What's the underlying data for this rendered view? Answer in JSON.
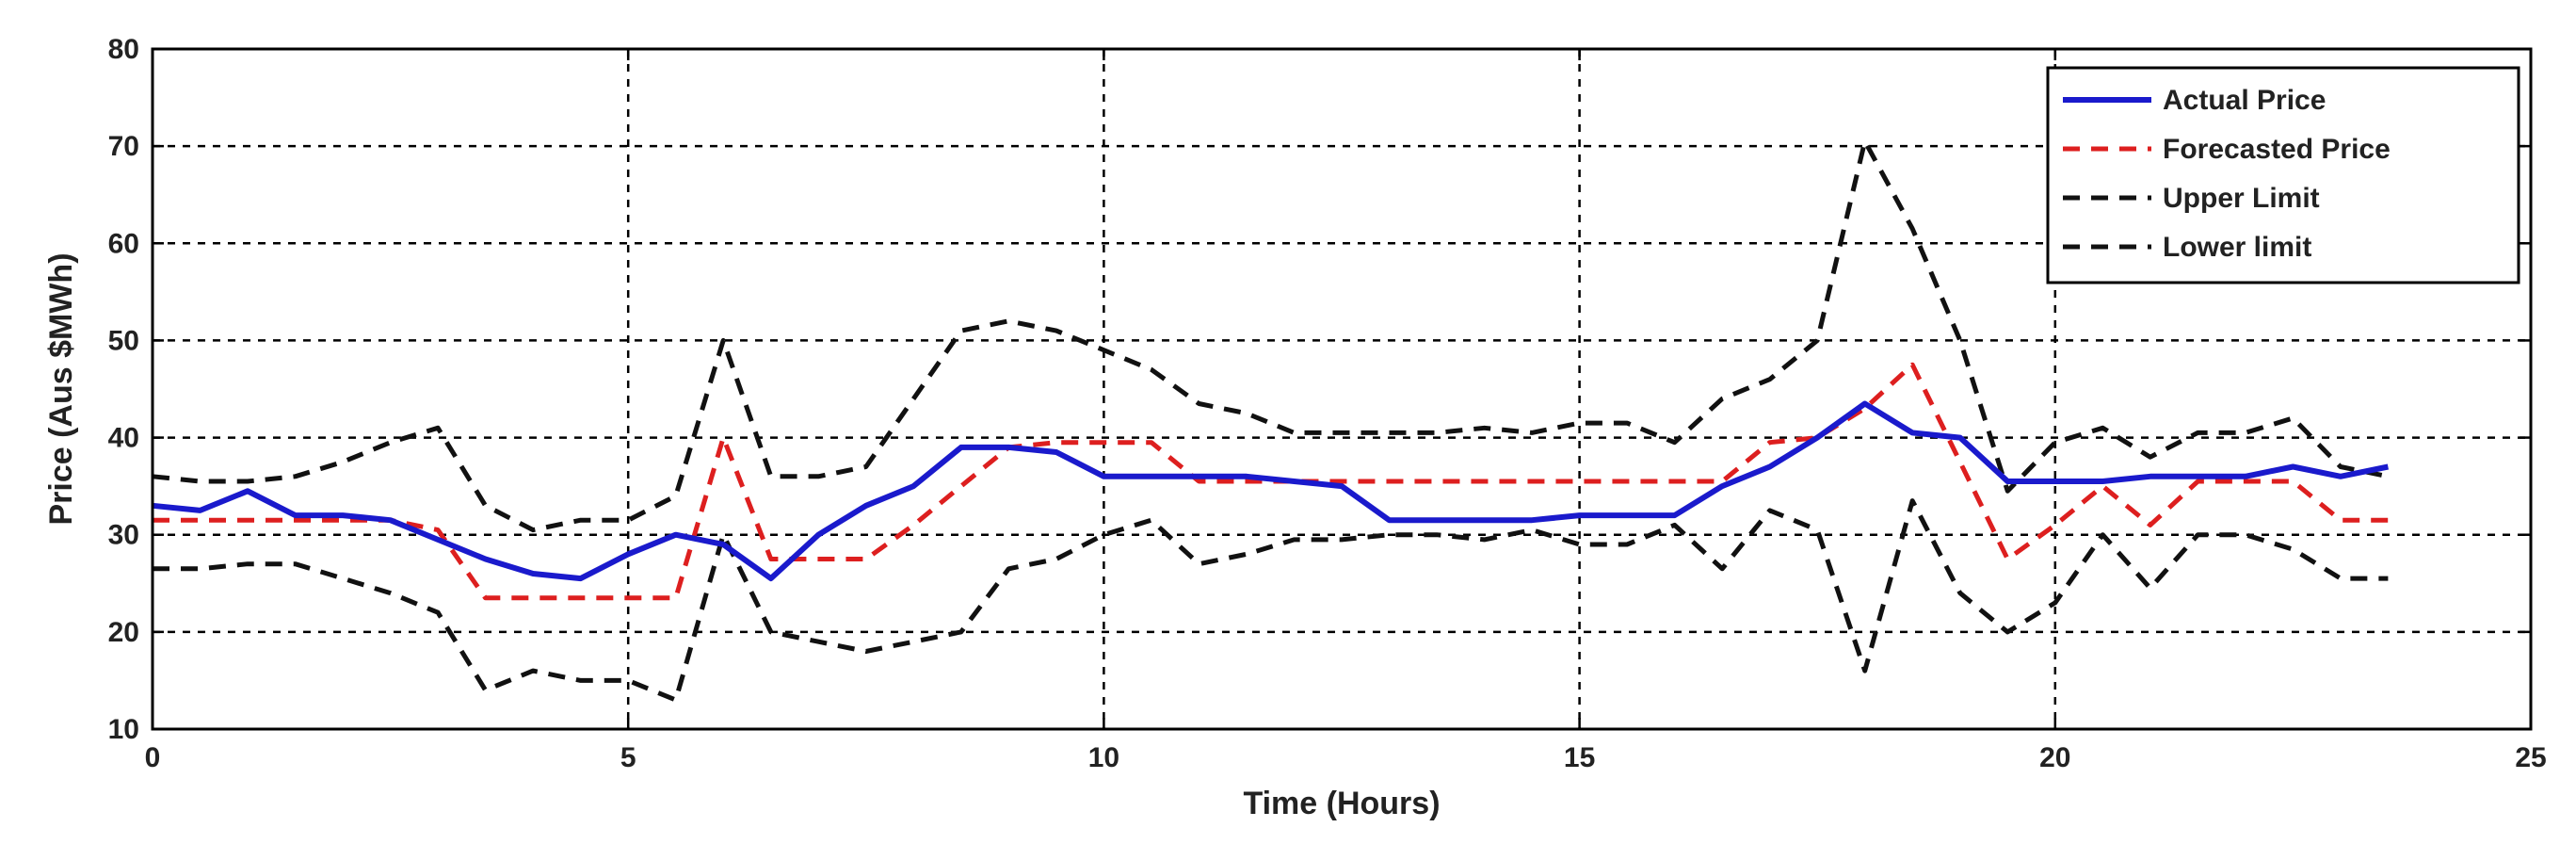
{
  "chart_data": {
    "type": "line",
    "title": "",
    "xlabel": "Time (Hours)",
    "ylabel": "Price (Aus $MWh)",
    "xlim": [
      0,
      25
    ],
    "ylim": [
      10,
      80
    ],
    "xticks": [
      0,
      5,
      10,
      15,
      20,
      25
    ],
    "yticks": [
      10,
      20,
      30,
      40,
      50,
      60,
      70,
      80
    ],
    "grid": true,
    "legend_position": "top-right",
    "series": [
      {
        "name": "Actual Price",
        "color": "#1a1acc",
        "style": "solid",
        "points": [
          [
            0,
            33
          ],
          [
            0.5,
            32.5
          ],
          [
            1,
            34.5
          ],
          [
            1.5,
            32
          ],
          [
            2,
            32
          ],
          [
            2.5,
            31.5
          ],
          [
            3,
            29.5
          ],
          [
            3.5,
            27.5
          ],
          [
            4,
            26
          ],
          [
            4.5,
            25.5
          ],
          [
            5,
            28
          ],
          [
            5.5,
            30
          ],
          [
            6,
            29
          ],
          [
            6.5,
            25.5
          ],
          [
            7,
            30
          ],
          [
            7.5,
            33
          ],
          [
            8,
            35
          ],
          [
            8.5,
            39
          ],
          [
            9,
            39
          ],
          [
            9.5,
            38.5
          ],
          [
            10,
            36
          ],
          [
            10.5,
            36
          ],
          [
            11,
            36
          ],
          [
            11.5,
            36
          ],
          [
            12,
            35.5
          ],
          [
            12.5,
            35
          ],
          [
            13,
            31.5
          ],
          [
            13.5,
            31.5
          ],
          [
            14,
            31.5
          ],
          [
            14.5,
            31.5
          ],
          [
            15,
            32
          ],
          [
            15.5,
            32
          ],
          [
            16,
            32
          ],
          [
            16.5,
            35
          ],
          [
            17,
            37
          ],
          [
            17.5,
            40
          ],
          [
            18,
            43.5
          ],
          [
            18.5,
            40.5
          ],
          [
            19,
            40
          ],
          [
            19.5,
            35.5
          ],
          [
            20,
            35.5
          ],
          [
            20.5,
            35.5
          ],
          [
            21,
            36
          ],
          [
            21.5,
            36
          ],
          [
            22,
            36
          ],
          [
            22.5,
            37
          ],
          [
            23,
            36
          ],
          [
            23.5,
            37
          ]
        ]
      },
      {
        "name": "Forecasted Price",
        "color": "#dd1f1f",
        "style": "dashed",
        "points": [
          [
            0,
            31.5
          ],
          [
            0.5,
            31.5
          ],
          [
            1,
            31.5
          ],
          [
            1.5,
            31.5
          ],
          [
            2,
            31.5
          ],
          [
            2.5,
            31.5
          ],
          [
            3,
            30.5
          ],
          [
            3.5,
            23.5
          ],
          [
            4,
            23.5
          ],
          [
            4.5,
            23.5
          ],
          [
            5,
            23.5
          ],
          [
            5.5,
            23.5
          ],
          [
            6,
            40
          ],
          [
            6.5,
            27.5
          ],
          [
            7,
            27.5
          ],
          [
            7.5,
            27.5
          ],
          [
            8,
            31
          ],
          [
            8.5,
            35
          ],
          [
            9,
            39
          ],
          [
            9.5,
            39.5
          ],
          [
            10,
            39.5
          ],
          [
            10.5,
            39.5
          ],
          [
            11,
            35.5
          ],
          [
            11.5,
            35.5
          ],
          [
            12,
            35.5
          ],
          [
            12.5,
            35.5
          ],
          [
            13,
            35.5
          ],
          [
            13.5,
            35.5
          ],
          [
            14,
            35.5
          ],
          [
            14.5,
            35.5
          ],
          [
            15,
            35.5
          ],
          [
            15.5,
            35.5
          ],
          [
            16,
            35.5
          ],
          [
            16.5,
            35.5
          ],
          [
            17,
            39.5
          ],
          [
            17.5,
            40
          ],
          [
            18,
            43
          ],
          [
            18.5,
            47.5
          ],
          [
            19,
            37.5
          ],
          [
            19.5,
            27.5
          ],
          [
            20,
            31
          ],
          [
            20.5,
            35
          ],
          [
            21,
            31
          ],
          [
            21.5,
            35.5
          ],
          [
            22,
            35.5
          ],
          [
            22.5,
            35.5
          ],
          [
            23,
            31.5
          ],
          [
            23.5,
            31.5
          ]
        ]
      },
      {
        "name": "Upper Limit",
        "color": "#111111",
        "style": "dashed",
        "points": [
          [
            0,
            36
          ],
          [
            0.5,
            35.5
          ],
          [
            1,
            35.5
          ],
          [
            1.5,
            36
          ],
          [
            2,
            37.5
          ],
          [
            2.5,
            39.5
          ],
          [
            3,
            41
          ],
          [
            3.5,
            33
          ],
          [
            4,
            30.5
          ],
          [
            4.5,
            31.5
          ],
          [
            5,
            31.5
          ],
          [
            5.5,
            34
          ],
          [
            6,
            50
          ],
          [
            6.5,
            36
          ],
          [
            7,
            36
          ],
          [
            7.5,
            37
          ],
          [
            8,
            44
          ],
          [
            8.5,
            51
          ],
          [
            9,
            52
          ],
          [
            9.5,
            51
          ],
          [
            10,
            49
          ],
          [
            10.5,
            47
          ],
          [
            11,
            43.5
          ],
          [
            11.5,
            42.5
          ],
          [
            12,
            40.5
          ],
          [
            12.5,
            40.5
          ],
          [
            13,
            40.5
          ],
          [
            13.5,
            40.5
          ],
          [
            14,
            41
          ],
          [
            14.5,
            40.5
          ],
          [
            15,
            41.5
          ],
          [
            15.5,
            41.5
          ],
          [
            16,
            39.5
          ],
          [
            16.5,
            44
          ],
          [
            17,
            46
          ],
          [
            17.5,
            50
          ],
          [
            18,
            70.5
          ],
          [
            18.5,
            61.5
          ],
          [
            19,
            50
          ],
          [
            19.5,
            34.5
          ],
          [
            20,
            39.5
          ],
          [
            20.5,
            41
          ],
          [
            21,
            38
          ],
          [
            21.5,
            40.5
          ],
          [
            22,
            40.5
          ],
          [
            22.5,
            42
          ],
          [
            23,
            37
          ],
          [
            23.5,
            36
          ]
        ]
      },
      {
        "name": "Lower limit",
        "color": "#111111",
        "style": "dashed",
        "points": [
          [
            0,
            26.5
          ],
          [
            0.5,
            26.5
          ],
          [
            1,
            27
          ],
          [
            1.5,
            27
          ],
          [
            2,
            25.5
          ],
          [
            2.5,
            24
          ],
          [
            3,
            22
          ],
          [
            3.5,
            14
          ],
          [
            4,
            16
          ],
          [
            4.5,
            15
          ],
          [
            5,
            15
          ],
          [
            5.5,
            13
          ],
          [
            6,
            30
          ],
          [
            6.5,
            20
          ],
          [
            7,
            19
          ],
          [
            7.5,
            18
          ],
          [
            8,
            19
          ],
          [
            8.5,
            20
          ],
          [
            9,
            26.5
          ],
          [
            9.5,
            27.5
          ],
          [
            10,
            30
          ],
          [
            10.5,
            31.5
          ],
          [
            11,
            27
          ],
          [
            11.5,
            28
          ],
          [
            12,
            29.5
          ],
          [
            12.5,
            29.5
          ],
          [
            13,
            30
          ],
          [
            13.5,
            30
          ],
          [
            14,
            29.5
          ],
          [
            14.5,
            30.5
          ],
          [
            15,
            29
          ],
          [
            15.5,
            29
          ],
          [
            16,
            31
          ],
          [
            16.5,
            26.5
          ],
          [
            17,
            32.5
          ],
          [
            17.5,
            30.5
          ],
          [
            18,
            16
          ],
          [
            18.5,
            33.5
          ],
          [
            19,
            24
          ],
          [
            19.5,
            20
          ],
          [
            20,
            23
          ],
          [
            20.5,
            30
          ],
          [
            21,
            24.5
          ],
          [
            21.5,
            30
          ],
          [
            22,
            30
          ],
          [
            22.5,
            28.5
          ],
          [
            23,
            25.5
          ],
          [
            23.5,
            25.5
          ]
        ]
      }
    ]
  }
}
